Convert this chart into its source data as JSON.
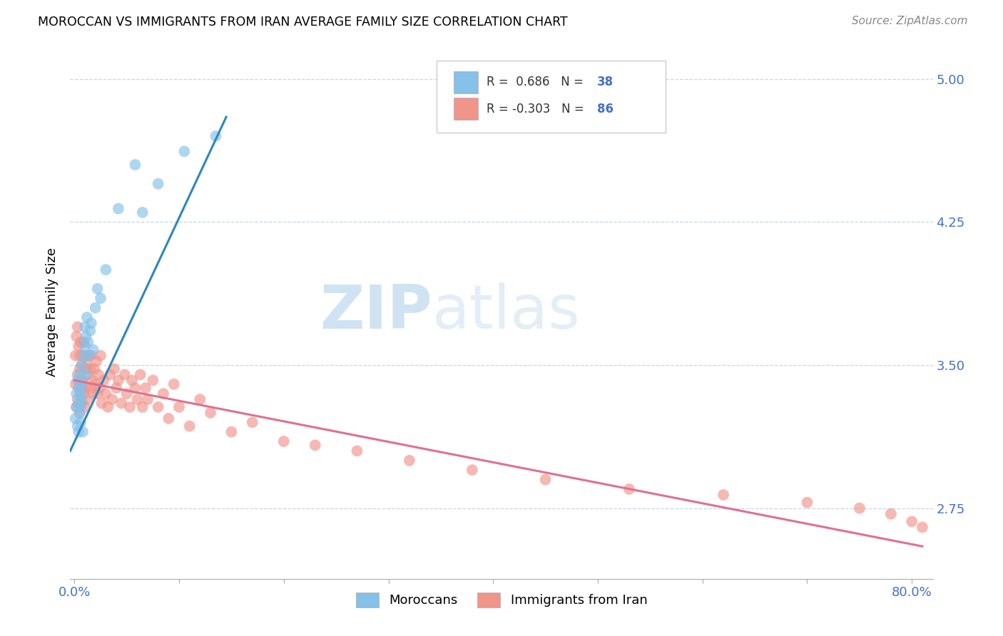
{
  "title": "MOROCCAN VS IMMIGRANTS FROM IRAN AVERAGE FAMILY SIZE CORRELATION CHART",
  "source": "Source: ZipAtlas.com",
  "ylabel": "Average Family Size",
  "yticks": [
    2.75,
    3.5,
    4.25,
    5.0
  ],
  "ymin": 2.38,
  "ymax": 5.18,
  "xmin": -0.004,
  "xmax": 0.82,
  "r_moroccan": 0.686,
  "n_moroccan": 38,
  "r_iran": -0.303,
  "n_iran": 86,
  "legend_label_1": "Moroccans",
  "legend_label_2": "Immigrants from Iran",
  "color_moroccan": "#85c1e9",
  "color_iran": "#f1948a",
  "line_color_moroccan": "#2e86c1",
  "line_color_iran": "#e07090",
  "watermark_zip": "ZIP",
  "watermark_atlas": "atlas",
  "moroccan_x": [
    0.001,
    0.002,
    0.002,
    0.003,
    0.003,
    0.004,
    0.004,
    0.005,
    0.005,
    0.005,
    0.006,
    0.006,
    0.006,
    0.007,
    0.007,
    0.007,
    0.008,
    0.009,
    0.01,
    0.01,
    0.011,
    0.011,
    0.012,
    0.013,
    0.014,
    0.015,
    0.016,
    0.018,
    0.02,
    0.022,
    0.025,
    0.03,
    0.042,
    0.058,
    0.065,
    0.08,
    0.105,
    0.135
  ],
  "moroccan_y": [
    3.22,
    3.28,
    3.35,
    3.18,
    3.42,
    3.3,
    3.15,
    3.38,
    3.25,
    3.45,
    3.2,
    3.35,
    3.28,
    3.4,
    3.32,
    3.5,
    3.15,
    3.55,
    3.6,
    3.7,
    3.65,
    3.45,
    3.75,
    3.62,
    3.55,
    3.68,
    3.72,
    3.58,
    3.8,
    3.9,
    3.85,
    4.0,
    4.32,
    4.55,
    4.3,
    4.45,
    4.62,
    4.7
  ],
  "iran_x": [
    0.001,
    0.001,
    0.002,
    0.002,
    0.003,
    0.003,
    0.003,
    0.004,
    0.004,
    0.005,
    0.005,
    0.005,
    0.006,
    0.006,
    0.006,
    0.007,
    0.007,
    0.007,
    0.008,
    0.008,
    0.009,
    0.009,
    0.01,
    0.01,
    0.011,
    0.011,
    0.012,
    0.012,
    0.013,
    0.014,
    0.015,
    0.015,
    0.016,
    0.017,
    0.018,
    0.019,
    0.02,
    0.021,
    0.022,
    0.023,
    0.024,
    0.025,
    0.026,
    0.028,
    0.03,
    0.032,
    0.034,
    0.036,
    0.038,
    0.04,
    0.042,
    0.045,
    0.048,
    0.05,
    0.053,
    0.055,
    0.058,
    0.06,
    0.063,
    0.065,
    0.068,
    0.07,
    0.075,
    0.08,
    0.085,
    0.09,
    0.095,
    0.1,
    0.11,
    0.12,
    0.13,
    0.15,
    0.17,
    0.2,
    0.23,
    0.27,
    0.32,
    0.38,
    0.45,
    0.53,
    0.62,
    0.7,
    0.75,
    0.78,
    0.8,
    0.81
  ],
  "iran_y": [
    3.55,
    3.4,
    3.65,
    3.28,
    3.7,
    3.45,
    3.32,
    3.6,
    3.38,
    3.48,
    3.25,
    3.55,
    3.42,
    3.35,
    3.62,
    3.3,
    3.5,
    3.38,
    3.55,
    3.42,
    3.62,
    3.35,
    3.48,
    3.28,
    3.55,
    3.38,
    3.5,
    3.32,
    3.45,
    3.55,
    3.38,
    3.48,
    3.55,
    3.42,
    3.35,
    3.48,
    3.4,
    3.52,
    3.35,
    3.45,
    3.38,
    3.55,
    3.3,
    3.42,
    3.35,
    3.28,
    3.45,
    3.32,
    3.48,
    3.38,
    3.42,
    3.3,
    3.45,
    3.35,
    3.28,
    3.42,
    3.38,
    3.32,
    3.45,
    3.28,
    3.38,
    3.32,
    3.42,
    3.28,
    3.35,
    3.22,
    3.4,
    3.28,
    3.18,
    3.32,
    3.25,
    3.15,
    3.2,
    3.1,
    3.08,
    3.05,
    3.0,
    2.95,
    2.9,
    2.85,
    2.82,
    2.78,
    2.75,
    2.72,
    2.68,
    2.65
  ],
  "blue_line_x": [
    -0.004,
    0.145
  ],
  "blue_line_y": [
    3.05,
    4.8
  ],
  "pink_line_x": [
    0.0,
    0.81
  ],
  "pink_line_y": [
    3.42,
    2.55
  ]
}
